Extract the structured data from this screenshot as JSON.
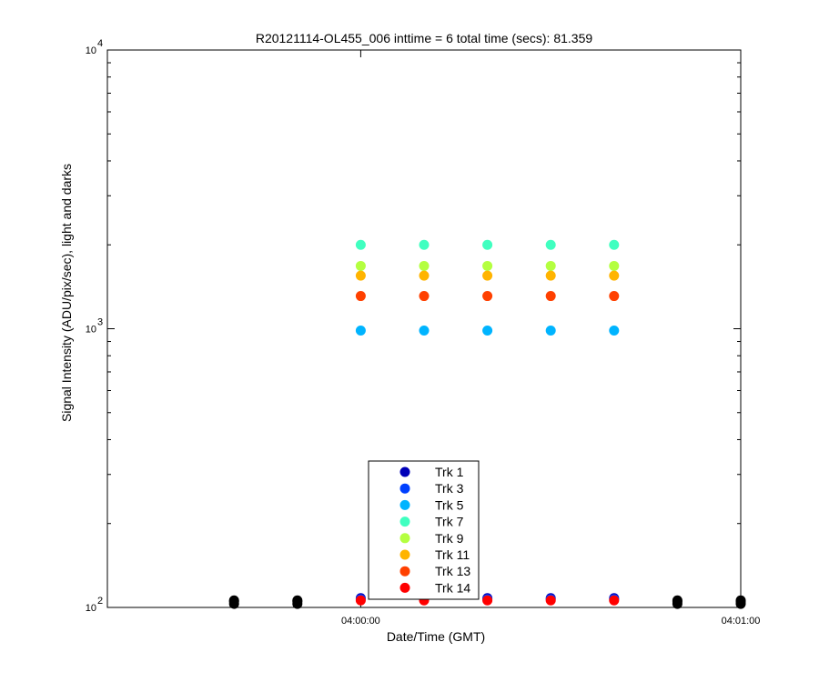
{
  "chart_data": {
    "type": "scatter",
    "title": "R20121114-OL455_006 inttime = 6 total time (secs): 81.359",
    "xlabel": "Date/Time (GMT)",
    "ylabel": "Signal Intensity (ADU/pix/sec), light and darks",
    "x_scale": "time",
    "y_scale": "log",
    "xlim": [
      "03:59:20",
      "04:01:00"
    ],
    "ylim": [
      100,
      10000
    ],
    "x_ticks": [
      {
        "value": "04:00:00",
        "label": "04:00:00"
      },
      {
        "value": "04:01:00",
        "label": "04:01:00"
      }
    ],
    "y_ticks": [
      {
        "value": 100,
        "base": "10",
        "exp": "2"
      },
      {
        "value": 1000,
        "base": "10",
        "exp": "3"
      },
      {
        "value": 10000,
        "base": "10",
        "exp": "4"
      }
    ],
    "grid": false,
    "legend_position": "bottom-center",
    "series": [
      {
        "name": "Trk 1",
        "color": "#0000b8",
        "x": [
          "04:00:00",
          "04:00:10",
          "04:00:20",
          "04:00:30",
          "04:00:40"
        ],
        "y": [
          108,
          108,
          108,
          108,
          108
        ]
      },
      {
        "name": "Trk 3",
        "color": "#0040ff",
        "x": [
          "04:00:00",
          "04:00:10",
          "04:00:20",
          "04:00:30",
          "04:00:40"
        ],
        "y": [
          107,
          107,
          107,
          107,
          107
        ]
      },
      {
        "name": "Trk 5",
        "color": "#00b4ff",
        "x": [
          "04:00:00",
          "04:00:10",
          "04:00:20",
          "04:00:30",
          "04:00:40"
        ],
        "y": [
          985,
          985,
          985,
          985,
          985
        ]
      },
      {
        "name": "Trk 7",
        "color": "#40ffc0",
        "x": [
          "04:00:00",
          "04:00:10",
          "04:00:20",
          "04:00:30",
          "04:00:40"
        ],
        "y": [
          2000,
          2000,
          2000,
          2000,
          2000
        ]
      },
      {
        "name": "Trk 9",
        "color": "#b4ff40",
        "x": [
          "04:00:00",
          "04:00:10",
          "04:00:20",
          "04:00:30",
          "04:00:40"
        ],
        "y": [
          1680,
          1680,
          1680,
          1680,
          1680
        ]
      },
      {
        "name": "Trk 11",
        "color": "#ffb400",
        "x": [
          "04:00:00",
          "04:00:10",
          "04:00:20",
          "04:00:30",
          "04:00:40"
        ],
        "y": [
          1550,
          1550,
          1550,
          1550,
          1550
        ]
      },
      {
        "name": "Trk 13",
        "color": "#ff4000",
        "x": [
          "04:00:00",
          "04:00:10",
          "04:00:20",
          "04:00:30",
          "04:00:40"
        ],
        "y": [
          1310,
          1310,
          1310,
          1310,
          1310
        ]
      },
      {
        "name": "Trk 14",
        "color": "#ff0000",
        "x": [
          "04:00:00",
          "04:00:10",
          "04:00:20",
          "04:00:30",
          "04:00:40"
        ],
        "y": [
          106,
          106,
          106,
          106,
          106
        ]
      }
    ],
    "dark_series": {
      "color": "#000000",
      "x": [
        "03:59:40",
        "03:59:40",
        "03:59:40",
        "03:59:50",
        "03:59:50",
        "03:59:50",
        "04:00:50",
        "04:00:50",
        "04:00:50",
        "04:01:00",
        "04:01:00",
        "04:01:00"
      ],
      "y": [
        103,
        105,
        106,
        103,
        105,
        106,
        103,
        105,
        106,
        103,
        105,
        106
      ]
    }
  }
}
